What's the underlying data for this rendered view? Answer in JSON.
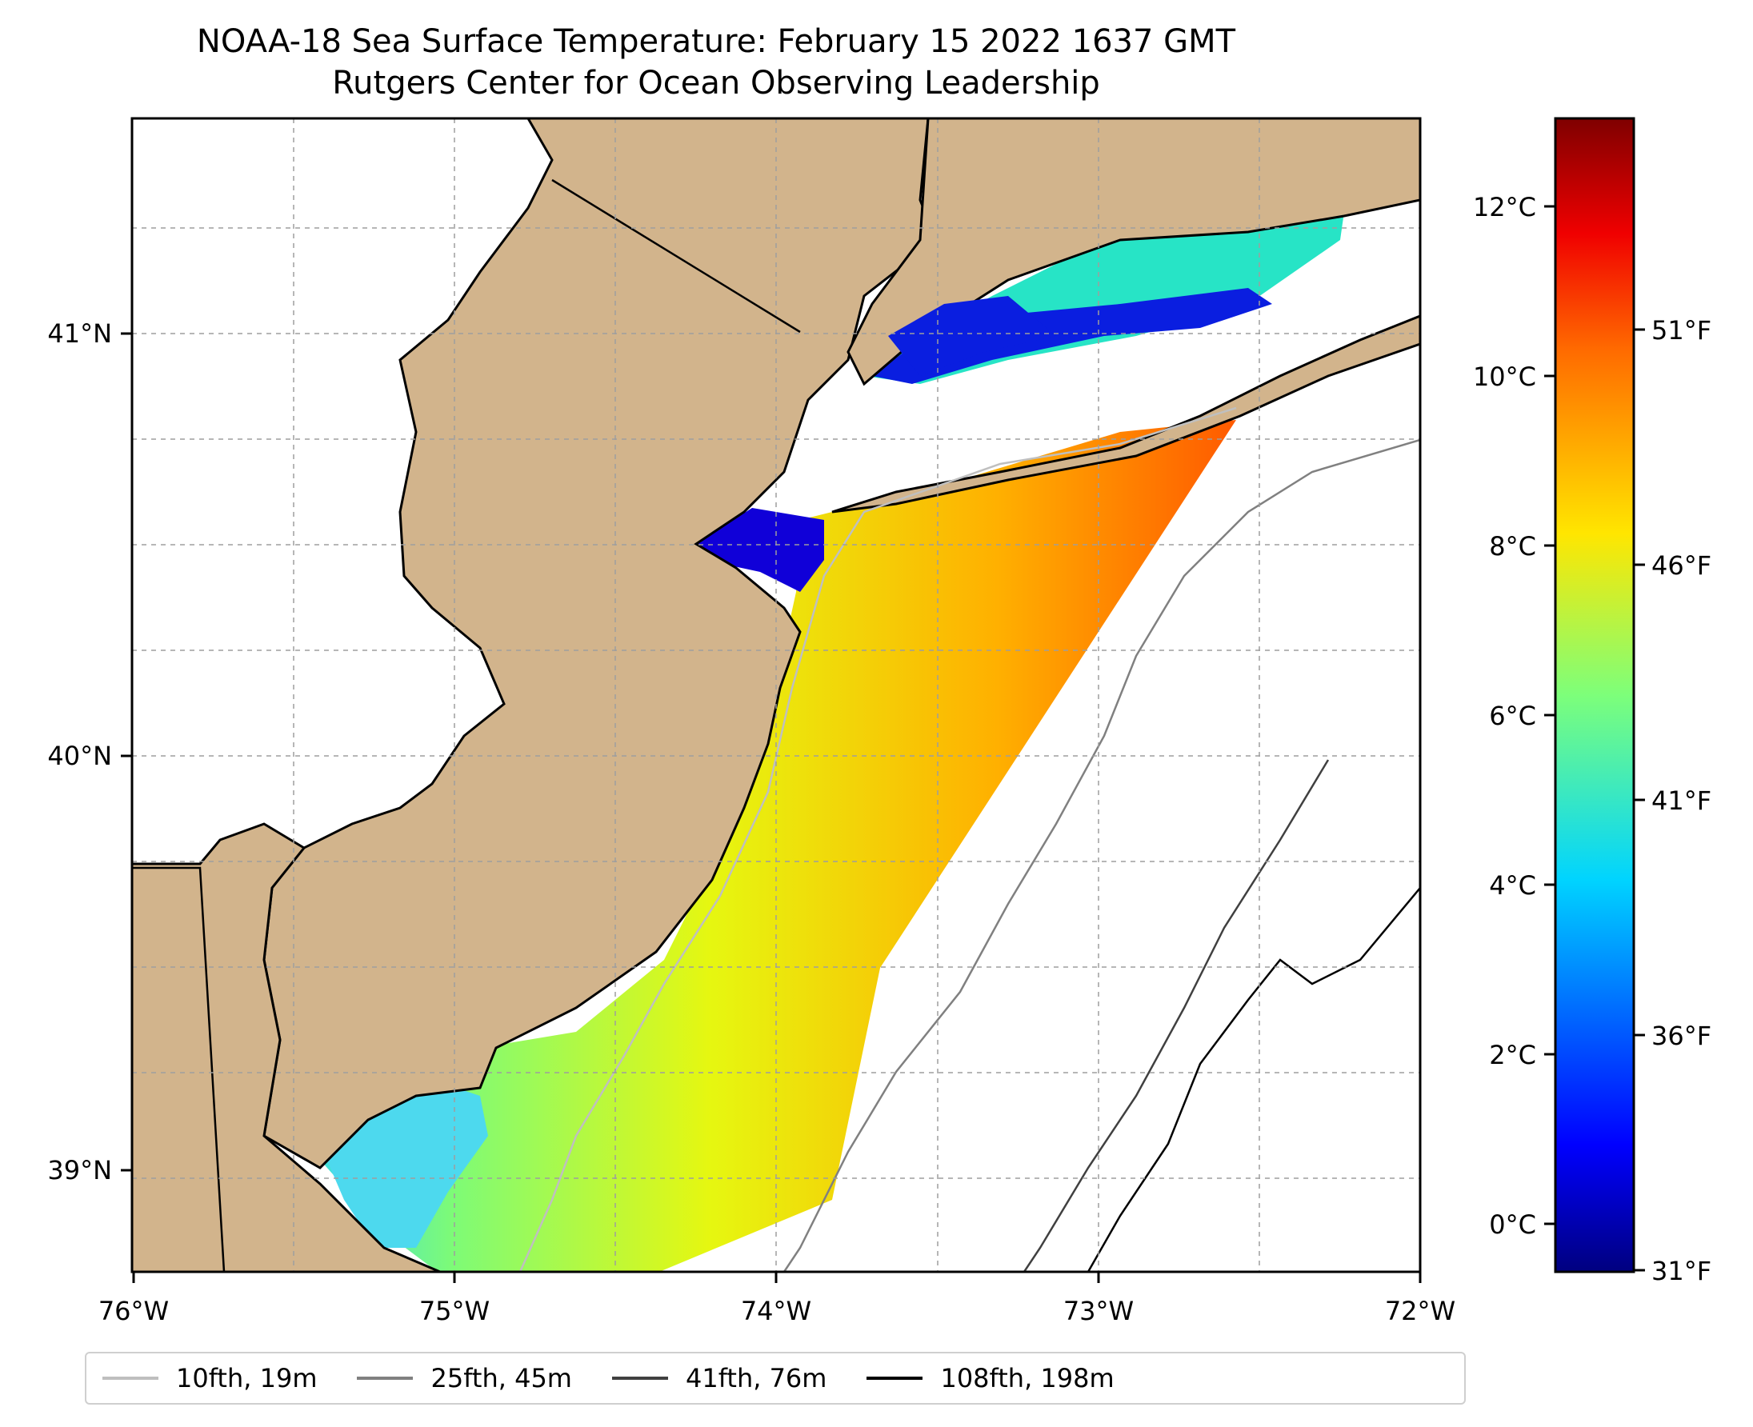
{
  "title": "NOAA-18 Sea Surface Temperature: February 15 2022 1637 GMT",
  "subtitle": "Rutgers Center for Ocean Observing Leadership",
  "map": {
    "xticks": [
      "76°W",
      "75°W",
      "74°W",
      "73°W",
      "72°W"
    ],
    "yticks": [
      "41°N",
      "40°N",
      "39°N"
    ],
    "colors": {
      "land": "#d2b48c",
      "coast": "#000000",
      "grid": "#9e9e9e"
    }
  },
  "colorbar": {
    "celsius_ticks": [
      "12°C",
      "10°C",
      "8°C",
      "6°C",
      "4°C",
      "2°C",
      "0°C"
    ],
    "fahrenheit_ticks": [
      "51°F",
      "46°F",
      "41°F",
      "36°F",
      "31°F"
    ],
    "colormap": "jet"
  },
  "legend": [
    {
      "label": "10fth, 19m",
      "color": "#bfbfbf"
    },
    {
      "label": "25fth, 45m",
      "color": "#808080"
    },
    {
      "label": "41fth, 76m",
      "color": "#404040"
    },
    {
      "label": "108fth, 198m",
      "color": "#000000"
    }
  ]
}
